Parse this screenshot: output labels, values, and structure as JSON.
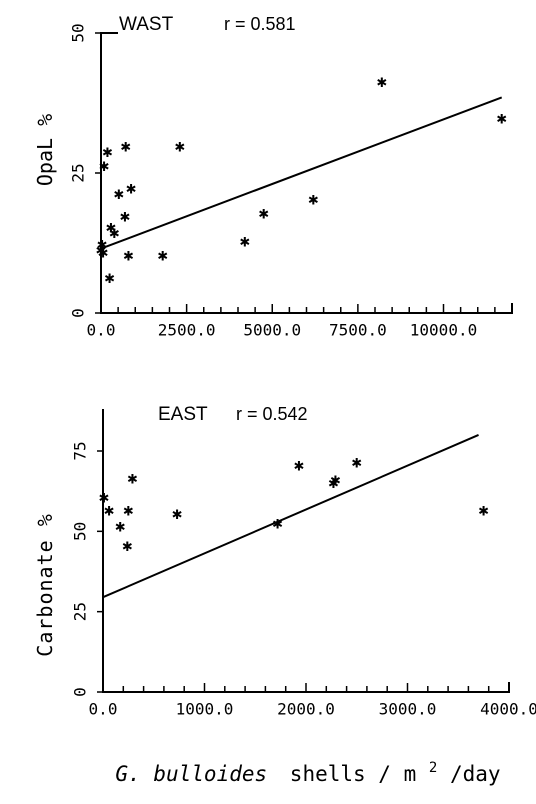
{
  "chart_data": [
    {
      "type": "scatter",
      "panel_label": "WAST",
      "stat_label": "r = 0.581",
      "ylabel": "OpaL %",
      "xlim": [
        0,
        12000
      ],
      "ylim": [
        0,
        50
      ],
      "xticks": [
        0,
        2500,
        5000,
        7500,
        10000
      ],
      "xtick_labels": [
        "0.0",
        "2500.0",
        "5000.0",
        "7500.0",
        "10000.0"
      ],
      "yticks": [
        0,
        25,
        50
      ],
      "ytick_labels": [
        "0",
        "25",
        "50"
      ],
      "x_minor_step": 500,
      "points": [
        {
          "x": 0,
          "y": 11
        },
        {
          "x": 30,
          "y": 12
        },
        {
          "x": 60,
          "y": 10.5
        },
        {
          "x": 90,
          "y": 26
        },
        {
          "x": 190,
          "y": 28.5
        },
        {
          "x": 250,
          "y": 6
        },
        {
          "x": 290,
          "y": 15
        },
        {
          "x": 390,
          "y": 14
        },
        {
          "x": 520,
          "y": 21
        },
        {
          "x": 700,
          "y": 17
        },
        {
          "x": 720,
          "y": 29.5
        },
        {
          "x": 800,
          "y": 10
        },
        {
          "x": 880,
          "y": 22
        },
        {
          "x": 1800,
          "y": 10
        },
        {
          "x": 2300,
          "y": 29.5
        },
        {
          "x": 4200,
          "y": 12.5
        },
        {
          "x": 4750,
          "y": 17.5
        },
        {
          "x": 6200,
          "y": 20
        },
        {
          "x": 8200,
          "y": 41
        },
        {
          "x": 11700,
          "y": 34.5
        }
      ],
      "regression": [
        {
          "x": 0,
          "y": 11.5
        },
        {
          "x": 11700,
          "y": 38.5
        }
      ]
    },
    {
      "type": "scatter",
      "panel_label": "EAST",
      "stat_label": "r = 0.542",
      "ylabel": "Carbonate %",
      "xlim": [
        0,
        4000
      ],
      "ylim": [
        0,
        75
      ],
      "xticks": [
        0,
        1000,
        2000,
        3000,
        4000
      ],
      "xtick_labels": [
        "0.0",
        "1000.0",
        "2000.0",
        "3000.0",
        "4000.0"
      ],
      "yticks": [
        0,
        25,
        50,
        75
      ],
      "ytick_labels": [
        "0",
        "25",
        "50",
        "75"
      ],
      "x_minor_step": 200,
      "points": [
        {
          "x": 10,
          "y": 60
        },
        {
          "x": 60,
          "y": 56
        },
        {
          "x": 170,
          "y": 51
        },
        {
          "x": 240,
          "y": 45
        },
        {
          "x": 250,
          "y": 56
        },
        {
          "x": 290,
          "y": 66
        },
        {
          "x": 730,
          "y": 55
        },
        {
          "x": 1720,
          "y": 52
        },
        {
          "x": 1930,
          "y": 70
        },
        {
          "x": 2270,
          "y": 64.5
        },
        {
          "x": 2290,
          "y": 65.5
        },
        {
          "x": 2500,
          "y": 71
        },
        {
          "x": 3750,
          "y": 56
        }
      ],
      "regression": [
        {
          "x": 0,
          "y": 29.5
        },
        {
          "x": 3700,
          "y": 80
        }
      ]
    }
  ],
  "shared_xlabel": {
    "italic": "G. bulloides",
    "rest": "shells / m",
    "superscript": "2",
    "suffix": "/day"
  }
}
